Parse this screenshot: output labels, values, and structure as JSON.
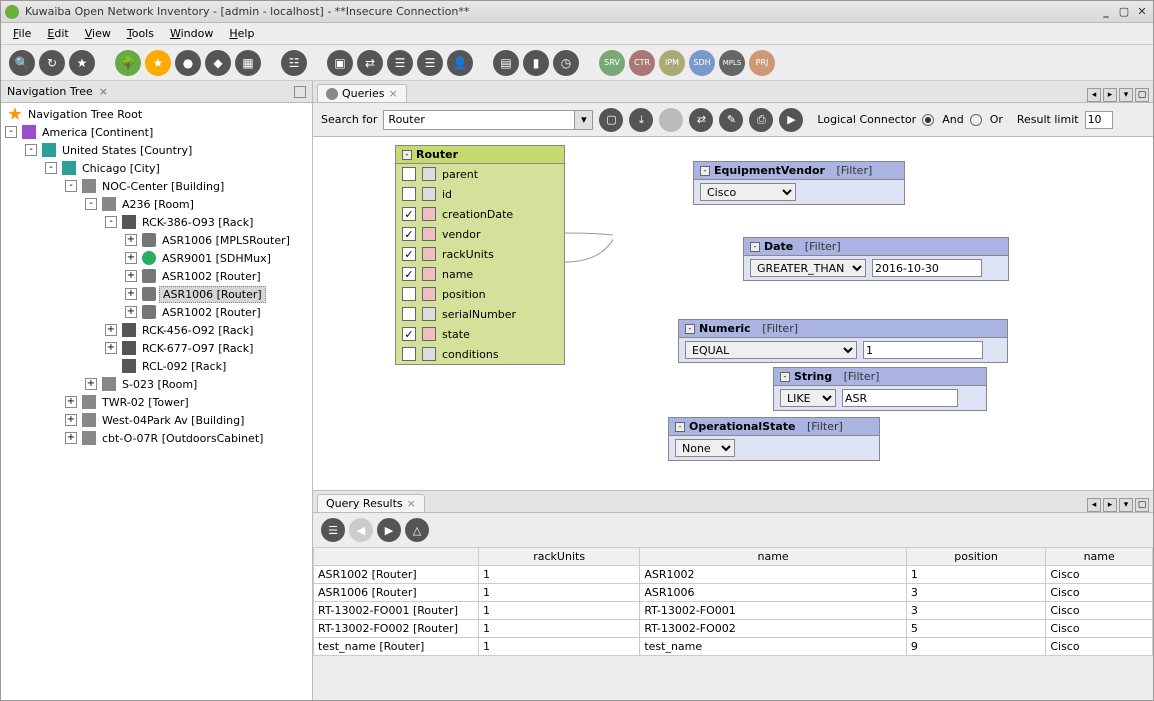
{
  "window": {
    "title": "Kuwaiba Open Network Inventory - [admin - localhost] - **Insecure Connection**"
  },
  "menu": [
    "File",
    "Edit",
    "View",
    "Tools",
    "Window",
    "Help"
  ],
  "navpane": {
    "title": "Navigation Tree"
  },
  "tree": {
    "root": "Navigation Tree Root",
    "america": "America [Continent]",
    "us": "United States [Country]",
    "chicago": "Chicago [City]",
    "noc": "NOC-Center [Building]",
    "a236": "A236 [Room]",
    "rck386": "RCK-386-O93 [Rack]",
    "asr1006m": "ASR1006 [MPLSRouter]",
    "asr9001": "ASR9001 [SDHMux]",
    "asr1002a": "ASR1002 [Router]",
    "asr1006r": "ASR1006 [Router]",
    "asr1002b": "ASR1002 [Router]",
    "rck456": "RCK-456-O92 [Rack]",
    "rck677": "RCK-677-O97 [Rack]",
    "rcl092": "RCL-092 [Rack]",
    "s023": "S-023 [Room]",
    "twr02": "TWR-02 [Tower]",
    "west04": "West-04Park Av [Building]",
    "cbt": "cbt-O-07R [OutdoorsCabinet]"
  },
  "queries_tab": "Queries",
  "search_label": "Search for",
  "search_value": "Router",
  "logical_conn": "Logical Connector",
  "and": "And",
  "or": "Or",
  "result_limit_label": "Result limit",
  "result_limit": "10",
  "router_box": {
    "title": "Router",
    "fields": [
      {
        "name": "parent",
        "checked": false,
        "link": false
      },
      {
        "name": "id",
        "checked": false,
        "link": false
      },
      {
        "name": "creationDate",
        "checked": true,
        "link": true
      },
      {
        "name": "vendor",
        "checked": true,
        "link": true
      },
      {
        "name": "rackUnits",
        "checked": true,
        "link": true
      },
      {
        "name": "name",
        "checked": true,
        "link": true
      },
      {
        "name": "position",
        "checked": false,
        "link": true
      },
      {
        "name": "serialNumber",
        "checked": false,
        "link": false
      },
      {
        "name": "state",
        "checked": true,
        "link": true
      },
      {
        "name": "conditions",
        "checked": false,
        "link": false
      }
    ]
  },
  "fvendor": {
    "title": "EquipmentVendor",
    "tag": "[Filter]",
    "value": "Cisco"
  },
  "fdate": {
    "title": "Date",
    "tag": "[Filter]",
    "op": "GREATER_THAN",
    "value": "2016-10-30"
  },
  "fnum": {
    "title": "Numeric",
    "tag": "[Filter]",
    "op": "EQUAL",
    "value": "1"
  },
  "fstr": {
    "title": "String",
    "tag": "[Filter]",
    "op": "LIKE",
    "value": "ASR"
  },
  "fstate": {
    "title": "OperationalState",
    "tag": "[Filter]",
    "value": "None"
  },
  "results_tab": "Query Results",
  "results": {
    "cols": [
      "",
      "rackUnits",
      "name",
      "position",
      "name"
    ],
    "rows": [
      [
        "ASR1002 [Router]",
        "1",
        "ASR1002",
        "1",
        "Cisco"
      ],
      [
        "ASR1006 [Router]",
        "1",
        "ASR1006",
        "3",
        "Cisco"
      ],
      [
        "RT-13002-FO001 [Router]",
        "1",
        "RT-13002-FO001",
        "3",
        "Cisco"
      ],
      [
        "RT-13002-FO002 [Router]",
        "1",
        "RT-13002-FO002",
        "5",
        "Cisco"
      ],
      [
        "test_name [Router]",
        "1",
        "test_name",
        "9",
        "Cisco"
      ]
    ]
  }
}
